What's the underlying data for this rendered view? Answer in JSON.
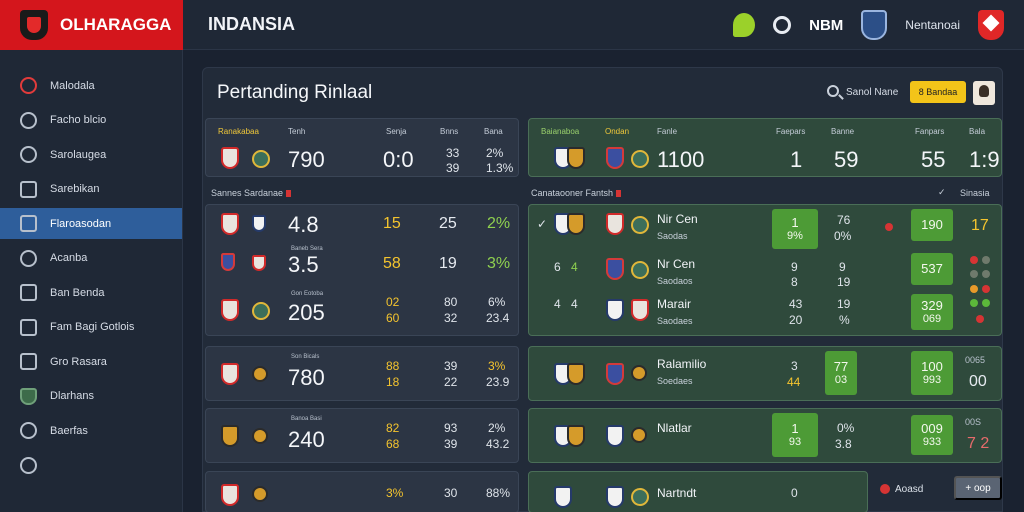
{
  "brand": {
    "name": "OLHARAGGA"
  },
  "header": {
    "title": "INDANSIA",
    "code": "NBM",
    "user": "Nentanoai"
  },
  "sidebar": {
    "items": [
      {
        "label": "Malodala"
      },
      {
        "label": "Facho blcio"
      },
      {
        "label": "Sarolaugea"
      },
      {
        "label": "Sarebikan"
      },
      {
        "label": "Flaroasodan"
      },
      {
        "label": "Acanba"
      },
      {
        "label": "Ban Benda"
      },
      {
        "label": "Fam Bagi Gotlois"
      },
      {
        "label": "Gro Rasara"
      },
      {
        "label": "Dlarhans"
      },
      {
        "label": "Baerfas"
      }
    ]
  },
  "panel": {
    "title": "Pertanding Rinlaal",
    "search_label": "Sanol Nane",
    "filter_label": "8 Bandaa",
    "section_left": "Sannes Sardanae",
    "section_right": "Canataooner Fantsh",
    "section_right_extra": "Sinasia",
    "info_label": "Aoasd",
    "add_label": "+ oop"
  },
  "left": {
    "header": [
      "Ranakabaa",
      "Tenh",
      "Senja",
      "Bnns",
      "Bana"
    ],
    "top": {
      "val": "790",
      "score": "0:0",
      "a": "33",
      "b": "39",
      "c": "2%",
      "d": "1.3%"
    },
    "rows": [
      {
        "label": "",
        "val": "4.8",
        "a": "15",
        "b": "25",
        "c": "2%"
      },
      {
        "label": "Baneb Sera",
        "val": "3.5",
        "a": "58",
        "b": "19",
        "c": "3%"
      },
      {
        "label": "Gon Eotoba",
        "val": "205",
        "a": "02",
        "b": "80",
        "c": "6%",
        "a2": "60",
        "b2": "32",
        "c2": "23.4"
      },
      {
        "label": "Son Bicals",
        "val": "780",
        "a": "88",
        "b": "39",
        "c": "3%",
        "a2": "18",
        "b2": "22",
        "c2": "23.9"
      },
      {
        "label": "Banoa Basi",
        "val": "240",
        "a": "82",
        "b": "93",
        "c": "2%",
        "a2": "68",
        "b2": "39",
        "c2": "43.2"
      },
      {
        "label": "",
        "val": "",
        "a": "3%",
        "b": "30",
        "c": "88%"
      }
    ]
  },
  "right": {
    "header": [
      "Baianaboa",
      "Ondan",
      "Fanle",
      "Faepars",
      "Banne",
      "Fanpars",
      "Bala"
    ],
    "top": {
      "val": "1100",
      "a": "1",
      "b": "59",
      "c": "55",
      "d": "1:9"
    },
    "rows": [
      {
        "team": "Nir Cen",
        "sub": "Saodas",
        "g1t": "1",
        "g1b": "9%",
        "a": "76",
        "b": "0%",
        "g2": "190",
        "d": "17"
      },
      {
        "team": "Nr Cen",
        "sub": "Saodaos",
        "lead1": "6",
        "lead2": "4",
        "g1t": "",
        "g1b": "",
        "a": "9",
        "a2": "8",
        "b": "9",
        "b2": "19",
        "g2": "537"
      },
      {
        "team": "Marair",
        "sub": "Saodaes",
        "lead1": "4",
        "lead2": "4",
        "g1t": "",
        "g1b": "",
        "a": "43",
        "a2": "20",
        "b": "19",
        "b2": "%",
        "g2": "329",
        "g2b": "069"
      },
      {
        "team": "Ralamilio",
        "sub": "Soedaes",
        "a": "3",
        "a2": "44",
        "g1t": "77",
        "g1b": "03",
        "g2": "100",
        "g2b": "993",
        "d": "0065",
        "d2": "00"
      },
      {
        "team": "Nlatlar",
        "sub": "",
        "g1t": "1",
        "g1b": "93",
        "a": "0%",
        "a2": "3.8",
        "g2": "009",
        "g2b": "933",
        "d": "00S",
        "d2": "7 2"
      },
      {
        "team": "Nartndt",
        "sub": "",
        "a": "0"
      }
    ]
  }
}
